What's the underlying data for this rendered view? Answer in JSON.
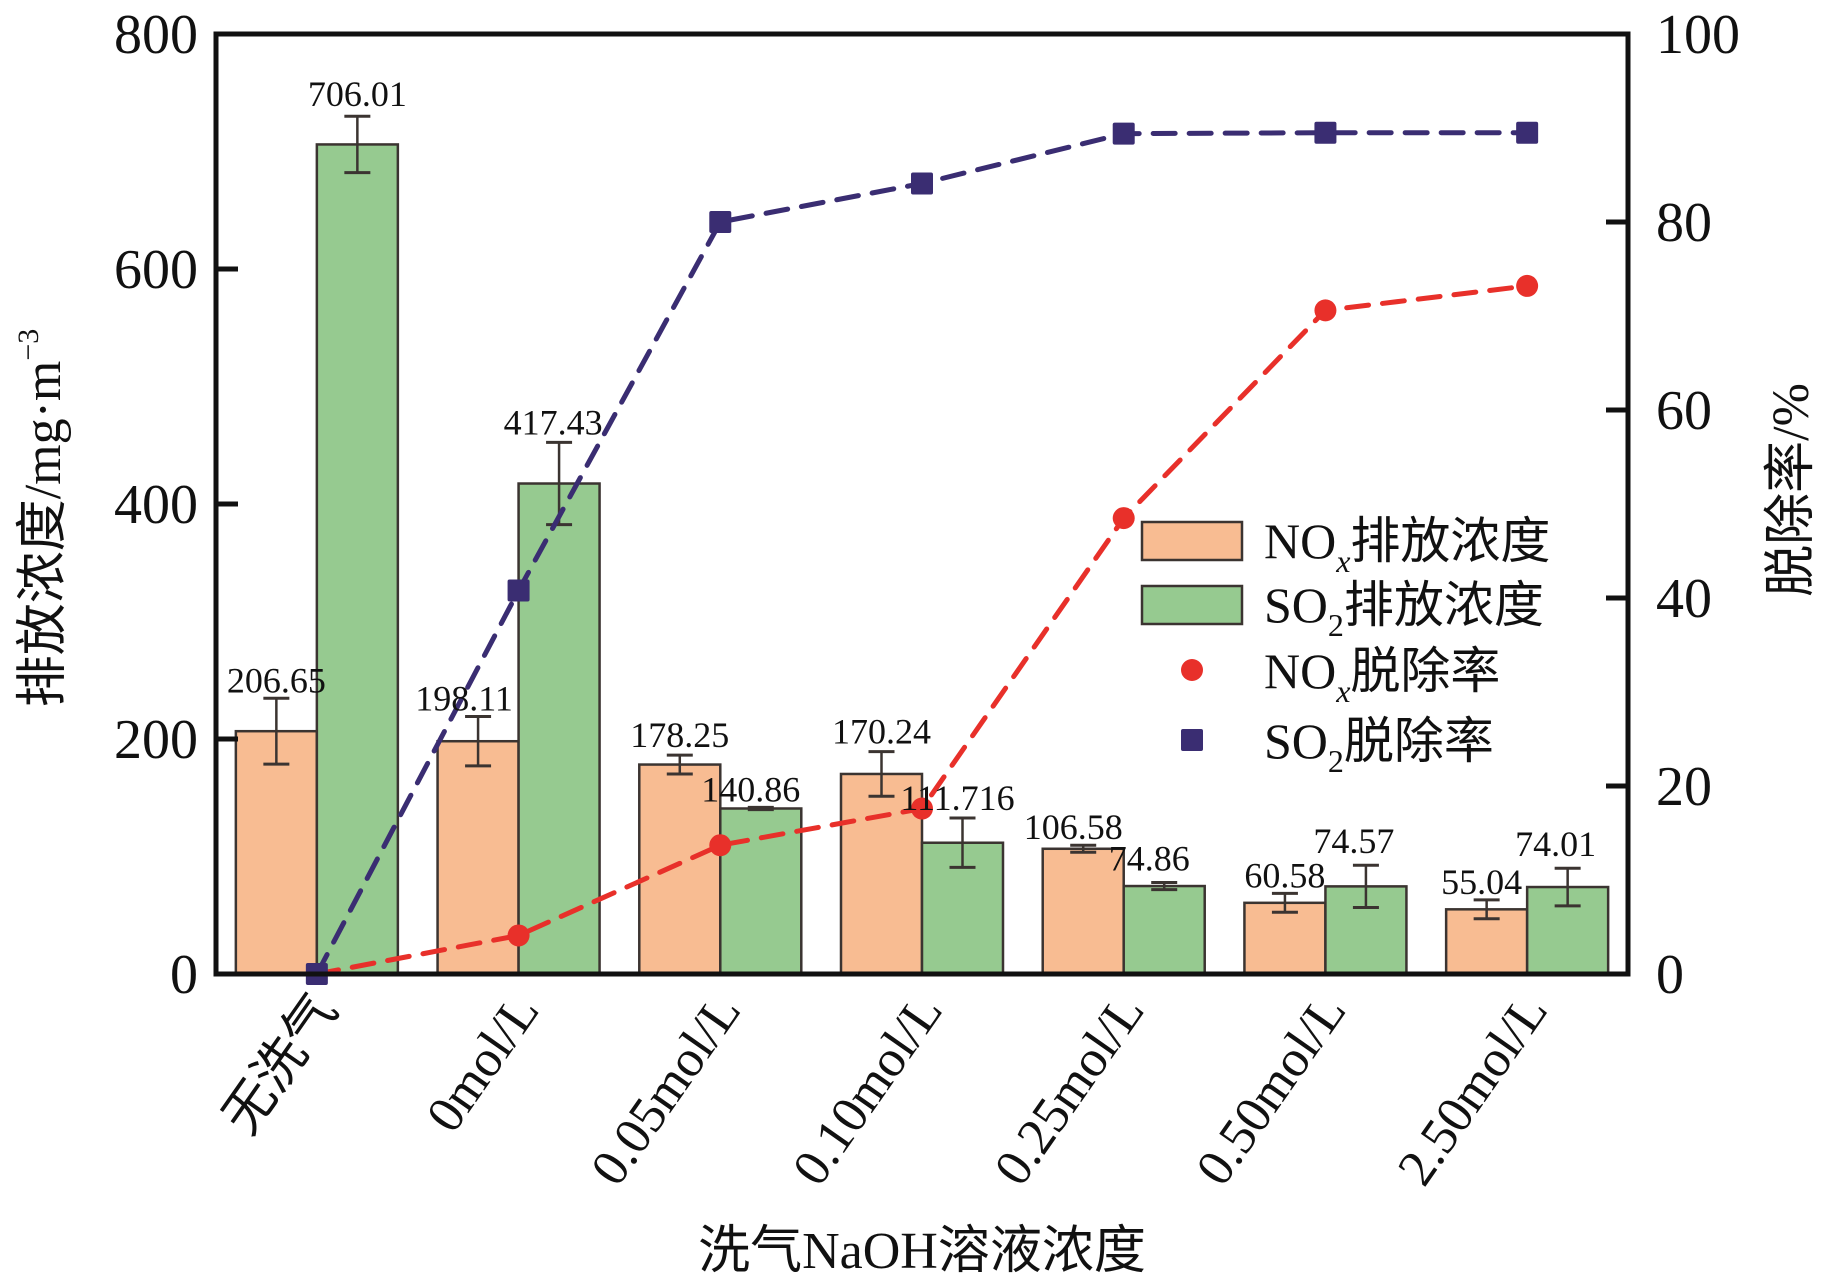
{
  "chart_data": {
    "type": "bar",
    "title": "",
    "xlabel": "洗气NaOH溶液浓度",
    "ylabel": "排放浓度/mg·m",
    "ylabel_superscript": "−3",
    "y2label": "脱除率/%",
    "ylim": [
      0,
      800
    ],
    "y2lim": [
      0,
      100
    ],
    "yticks": [
      "0",
      "200",
      "400",
      "600",
      "800"
    ],
    "y2ticks": [
      "0",
      "20",
      "40",
      "60",
      "80",
      "100"
    ],
    "grid": false,
    "legend_position": "center-right",
    "categories": [
      "无洗气",
      "0mol/L",
      "0.05mol/L",
      "0.10mol/L",
      "0.25mol/L",
      "0.50mol/L",
      "2.50mol/L"
    ],
    "series": [
      {
        "name": "NOx排放浓度",
        "legend_main": "NO",
        "legend_sub": "x",
        "legend_rest": "排放浓度",
        "kind": "bar",
        "axis": "left",
        "color": "#F8BC92",
        "values": [
          206.65,
          198.11,
          178.25,
          170.24,
          106.58,
          60.58,
          55.04
        ],
        "labels": [
          "206.65",
          "198.11",
          "178.25",
          "170.24",
          "106.58",
          "60.58",
          "55.04"
        ],
        "errors": [
          28,
          21,
          8,
          19,
          3,
          8,
          8
        ]
      },
      {
        "name": "SO2排放浓度",
        "legend_main": "SO",
        "legend_sub": "2",
        "legend_rest": "排放浓度",
        "kind": "bar",
        "axis": "left",
        "color": "#96CA90",
        "values": [
          706.01,
          417.43,
          140.86,
          111.716,
          74.86,
          74.57,
          74.01
        ],
        "labels": [
          "706.01",
          "417.43",
          "140.86",
          "111.716",
          "74.86",
          "74.57",
          "74.01"
        ],
        "errors": [
          24,
          35,
          1,
          21,
          3,
          18,
          16
        ]
      },
      {
        "name": "NOx脱除率",
        "legend_main": "NO",
        "legend_sub": "x",
        "legend_rest": "脱除率",
        "kind": "line",
        "marker": "circle",
        "axis": "right",
        "color": "#E8302A",
        "values": [
          0,
          4.1,
          13.7,
          17.6,
          48.5,
          70.6,
          73.2
        ]
      },
      {
        "name": "SO2脱除率",
        "legend_main": "SO",
        "legend_sub": "2",
        "legend_rest": "脱除率",
        "kind": "line",
        "marker": "square",
        "axis": "right",
        "color": "#3A2D72",
        "values": [
          0,
          40.8,
          80.0,
          84.1,
          89.4,
          89.5,
          89.5
        ]
      }
    ]
  }
}
